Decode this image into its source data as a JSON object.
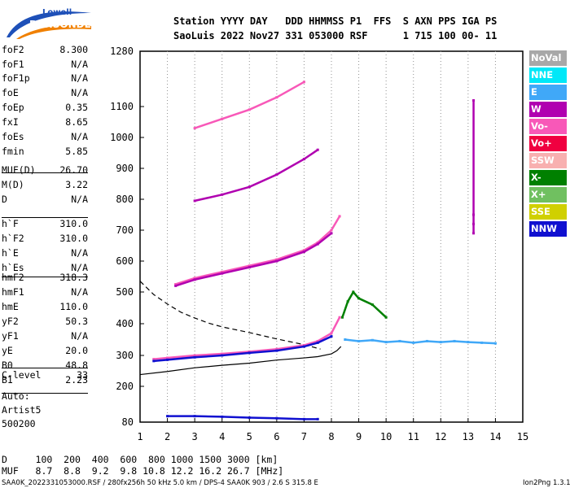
{
  "logo": {
    "line1": "Lowell",
    "line2": "DIGISONDE"
  },
  "header": {
    "line1": "Station YYYY DAY   DDD HHMMSS P1  FFS  S AXN PPS IGA PS",
    "line2": "SaoLuis 2022 Nov27 331 053000 RSF      1 715 100 00- 11"
  },
  "params": [
    {
      "k": "foF2",
      "v": "8.300"
    },
    {
      "k": "foF1",
      "v": "N/A"
    },
    {
      "k": "foF1p",
      "v": "N/A"
    },
    {
      "k": "foE",
      "v": "N/A"
    },
    {
      "k": "foEp",
      "v": "0.35"
    },
    {
      "k": "fxI",
      "v": "8.65"
    },
    {
      "k": "foEs",
      "v": "N/A"
    },
    {
      "k": "fmin",
      "v": "5.85"
    },
    {
      "k": "MUF(D)",
      "v": "26.70"
    },
    {
      "k": "M(D)",
      "v": "3.22"
    },
    {
      "k": "D",
      "v": "N/A"
    },
    {
      "k": "h`F",
      "v": "310.0"
    },
    {
      "k": "h`F2",
      "v": "310.0"
    },
    {
      "k": "h`E",
      "v": "N/A"
    },
    {
      "k": "h`Es",
      "v": "N/A"
    },
    {
      "k": "hmF2",
      "v": "318.3"
    },
    {
      "k": "hmF1",
      "v": "N/A"
    },
    {
      "k": "hmE",
      "v": "110.0"
    },
    {
      "k": "yF2",
      "v": "50.3"
    },
    {
      "k": "yF1",
      "v": "N/A"
    },
    {
      "k": "yE",
      "v": "20.0"
    },
    {
      "k": "B0",
      "v": "48.8"
    },
    {
      "k": "B1",
      "v": "2.23"
    },
    {
      "k": "C-level",
      "v": "33"
    }
  ],
  "auto": [
    "Auto:",
    "Artist5",
    "500200"
  ],
  "legend": [
    {
      "label": "NoVal",
      "color": "#a8a8a8"
    },
    {
      "label": "NNE",
      "color": "#00e8f8"
    },
    {
      "label": "E",
      "color": "#40a8f8"
    },
    {
      "label": "W",
      "color": "#b000b0"
    },
    {
      "label": "Vo-",
      "color": "#f858b8"
    },
    {
      "label": "Vo+",
      "color": "#f00040"
    },
    {
      "label": "SSW",
      "color": "#f8b0b0"
    },
    {
      "label": "X-",
      "color": "#008000"
    },
    {
      "label": "X+",
      "color": "#70c060"
    },
    {
      "label": "SSE",
      "color": "#d0d000"
    },
    {
      "label": "NNW",
      "color": "#1010d0"
    }
  ],
  "footer": {
    "d_line": "D     100  200  400  600  800 1000 1500 3000 [km]",
    "muf_line": "MUF   8.7  8.8  9.2  9.8 10.8 12.2 16.2 26.7 [MHz]",
    "info_left": "SAA0K_2022331053000.RSF / 280fx256h 50 kHz 5.0 km / DPS-4 SAA0K 903 / 2.6 S 315.8 E",
    "info_right": "Ion2Png 1.3.17"
  },
  "chart_data": {
    "type": "scatter",
    "x_ticks": [
      "1",
      "2",
      "3",
      "4",
      "5",
      "6",
      "7",
      "8",
      "9",
      "10",
      "11",
      "12",
      "13",
      "14",
      "15"
    ],
    "y_ticks": [
      "80",
      "200",
      "300",
      "400",
      "500",
      "600",
      "700",
      "800",
      "900",
      "1000",
      "1100",
      "1280"
    ],
    "xlim": [
      1,
      15
    ],
    "ylim": [
      80,
      1280
    ],
    "y_scale": "non-linear (compressed low range)",
    "grid": "dotted, x only",
    "series": [
      {
        "color": "#000000",
        "x": [
          1.0,
          2,
          3,
          4,
          5,
          6,
          7,
          7.5,
          8,
          8.2,
          8.35
        ],
        "y": [
          238,
          248,
          260,
          268,
          275,
          285,
          292,
          296,
          305,
          315,
          328
        ]
      },
      {
        "color": "#000000",
        "dashed": true,
        "x": [
          1.0,
          1.5,
          2,
          2.5,
          3,
          3.5,
          4,
          5,
          6,
          7,
          7.6
        ],
        "y": [
          535,
          492,
          462,
          436,
          418,
          402,
          390,
          372,
          352,
          334,
          320
        ]
      },
      {
        "color": "#f858b8",
        "x": [
          1.5,
          2,
          3,
          4,
          5,
          6,
          7,
          7.5,
          8,
          8.3
        ],
        "y": [
          288,
          292,
          300,
          305,
          312,
          320,
          332,
          345,
          370,
          420
        ]
      },
      {
        "color": "#1010d0",
        "x": [
          1.5,
          2,
          3,
          4,
          5,
          6,
          7,
          7.5,
          8
        ],
        "y": [
          282,
          286,
          294,
          300,
          308,
          315,
          328,
          340,
          360
        ]
      },
      {
        "color": "#f858b8",
        "x": [
          2.3,
          3,
          4,
          5,
          6,
          7,
          7.5,
          8,
          8.3
        ],
        "y": [
          525,
          545,
          565,
          585,
          605,
          635,
          660,
          700,
          745
        ]
      },
      {
        "color": "#b000b0",
        "x": [
          2.3,
          3,
          4,
          5,
          6,
          7,
          7.5,
          8
        ],
        "y": [
          520,
          540,
          560,
          580,
          600,
          630,
          655,
          690
        ]
      },
      {
        "color": "#b000b0",
        "x": [
          3,
          4,
          5,
          6,
          7,
          7.5
        ],
        "y": [
          795,
          815,
          840,
          880,
          930,
          960
        ]
      },
      {
        "color": "#1010d0",
        "x": [
          2,
          3,
          4,
          5,
          6,
          7,
          7.5
        ],
        "y": [
          100,
          100,
          98,
          95,
          93,
          90,
          90
        ]
      },
      {
        "color": "#40a8f8",
        "x": [
          8.5,
          9,
          9.5,
          10,
          10.5,
          11,
          11.5,
          12,
          12.5,
          13,
          13.5,
          14
        ],
        "y": [
          350,
          345,
          348,
          342,
          345,
          340,
          345,
          342,
          345,
          342,
          340,
          338
        ]
      },
      {
        "color": "#008000",
        "x": [
          8.4,
          8.6,
          8.8,
          9,
          9.5,
          10
        ],
        "y": [
          420,
          470,
          500,
          480,
          460,
          420
        ]
      },
      {
        "color": "#f858b8",
        "x": [
          3,
          4,
          5,
          6,
          7
        ],
        "y": [
          1030,
          1060,
          1090,
          1130,
          1180
        ]
      },
      {
        "color": "#b000b0",
        "x": [
          13.2,
          13.2,
          13.2,
          13.2
        ],
        "y": [
          690,
          720,
          750,
          1120
        ]
      }
    ]
  }
}
